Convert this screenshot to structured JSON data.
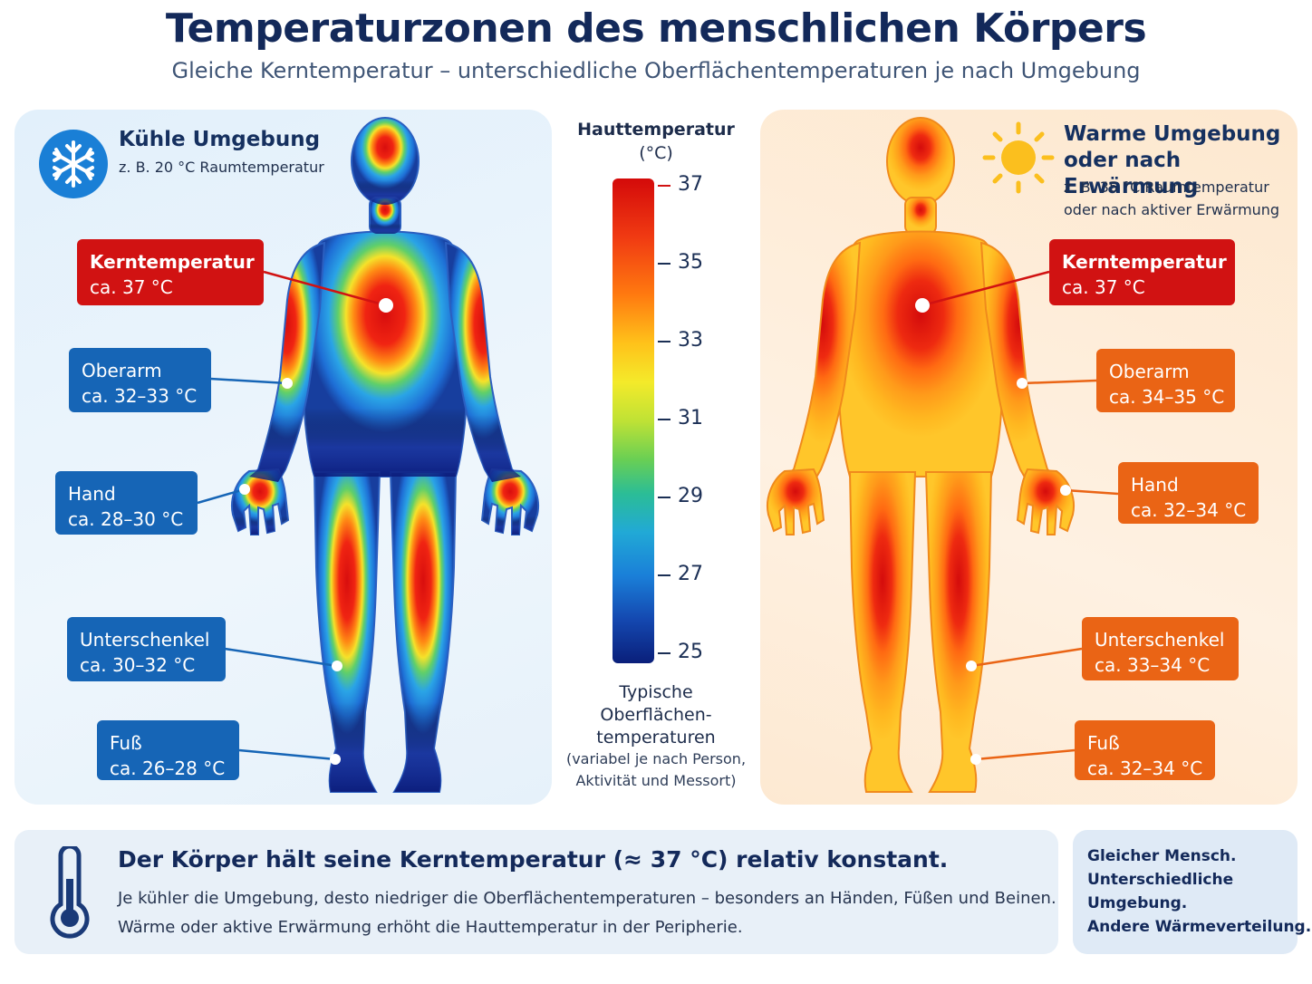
{
  "header": {
    "title": "Temperaturzonen des menschlichen Körpers",
    "subtitle": "Gleiche Kerntemperatur – unterschiedliche Oberflächentemperaturen je nach Umgebung"
  },
  "cold": {
    "title": "Kühle Umgebung",
    "subtitle": "z. B. 20 °C Raumtemperatur",
    "icon": "snowflake-icon",
    "labels": {
      "core": {
        "name": "Kerntemperatur",
        "value": "ca. 37 °C"
      },
      "upper_arm": {
        "name": "Oberarm",
        "value": "ca. 32–33 °C"
      },
      "hand": {
        "name": "Hand",
        "value": "ca. 28–30 °C"
      },
      "lower_leg": {
        "name": "Unterschenkel",
        "value": "ca. 30–32 °C"
      },
      "foot": {
        "name": "Fuß",
        "value": "ca. 26–28 °C"
      }
    }
  },
  "warm": {
    "title_line1": "Warme Umgebung",
    "title_line2": "oder nach Erwärmung",
    "subtitle_line1": "z. B. 35 °C Raumtemperatur",
    "subtitle_line2": "oder nach aktiver Erwärmung",
    "icon": "sun-icon",
    "labels": {
      "core": {
        "name": "Kerntemperatur",
        "value": "ca. 37 °C"
      },
      "upper_arm": {
        "name": "Oberarm",
        "value": "ca. 34–35 °C"
      },
      "hand": {
        "name": "Hand",
        "value": "ca. 32–34 °C"
      },
      "lower_leg": {
        "name": "Unterschenkel",
        "value": "ca. 33–34 °C"
      },
      "foot": {
        "name": "Fuß",
        "value": "ca. 32–34 °C"
      }
    }
  },
  "scale": {
    "title": "Hauttemperatur",
    "unit": "(°C)",
    "ticks": [
      "37",
      "35",
      "33",
      "31",
      "29",
      "27",
      "25"
    ],
    "min": 25,
    "max": 37,
    "note_line1": "Typische",
    "note_line2": "Oberflächen-",
    "note_line3": "temperaturen",
    "small_line1": "(variabel je nach Person,",
    "small_line2": "Aktivität und Messort)"
  },
  "footer": {
    "icon": "thermometer-icon",
    "heading": "Der Körper hält seine Kerntemperatur (≈ 37 °C) relativ konstant.",
    "line1": "Je kühler die Umgebung, desto niedriger die Oberflächentemperaturen – besonders an Händen, Füßen und Beinen.",
    "line2": "Wärme oder aktive Erwärmung erhöht die Hauttemperatur in der Peripherie.",
    "side_line1": "Gleicher Mensch.",
    "side_line2": "Unterschiedliche",
    "side_line3": "Umgebung.",
    "side_line4": "Andere Wärmeverteilung."
  },
  "colors": {
    "core_red": "#d11212",
    "cold_blue": "#1665b6",
    "warm_orange": "#ea6415",
    "title_navy": "#13295a"
  }
}
